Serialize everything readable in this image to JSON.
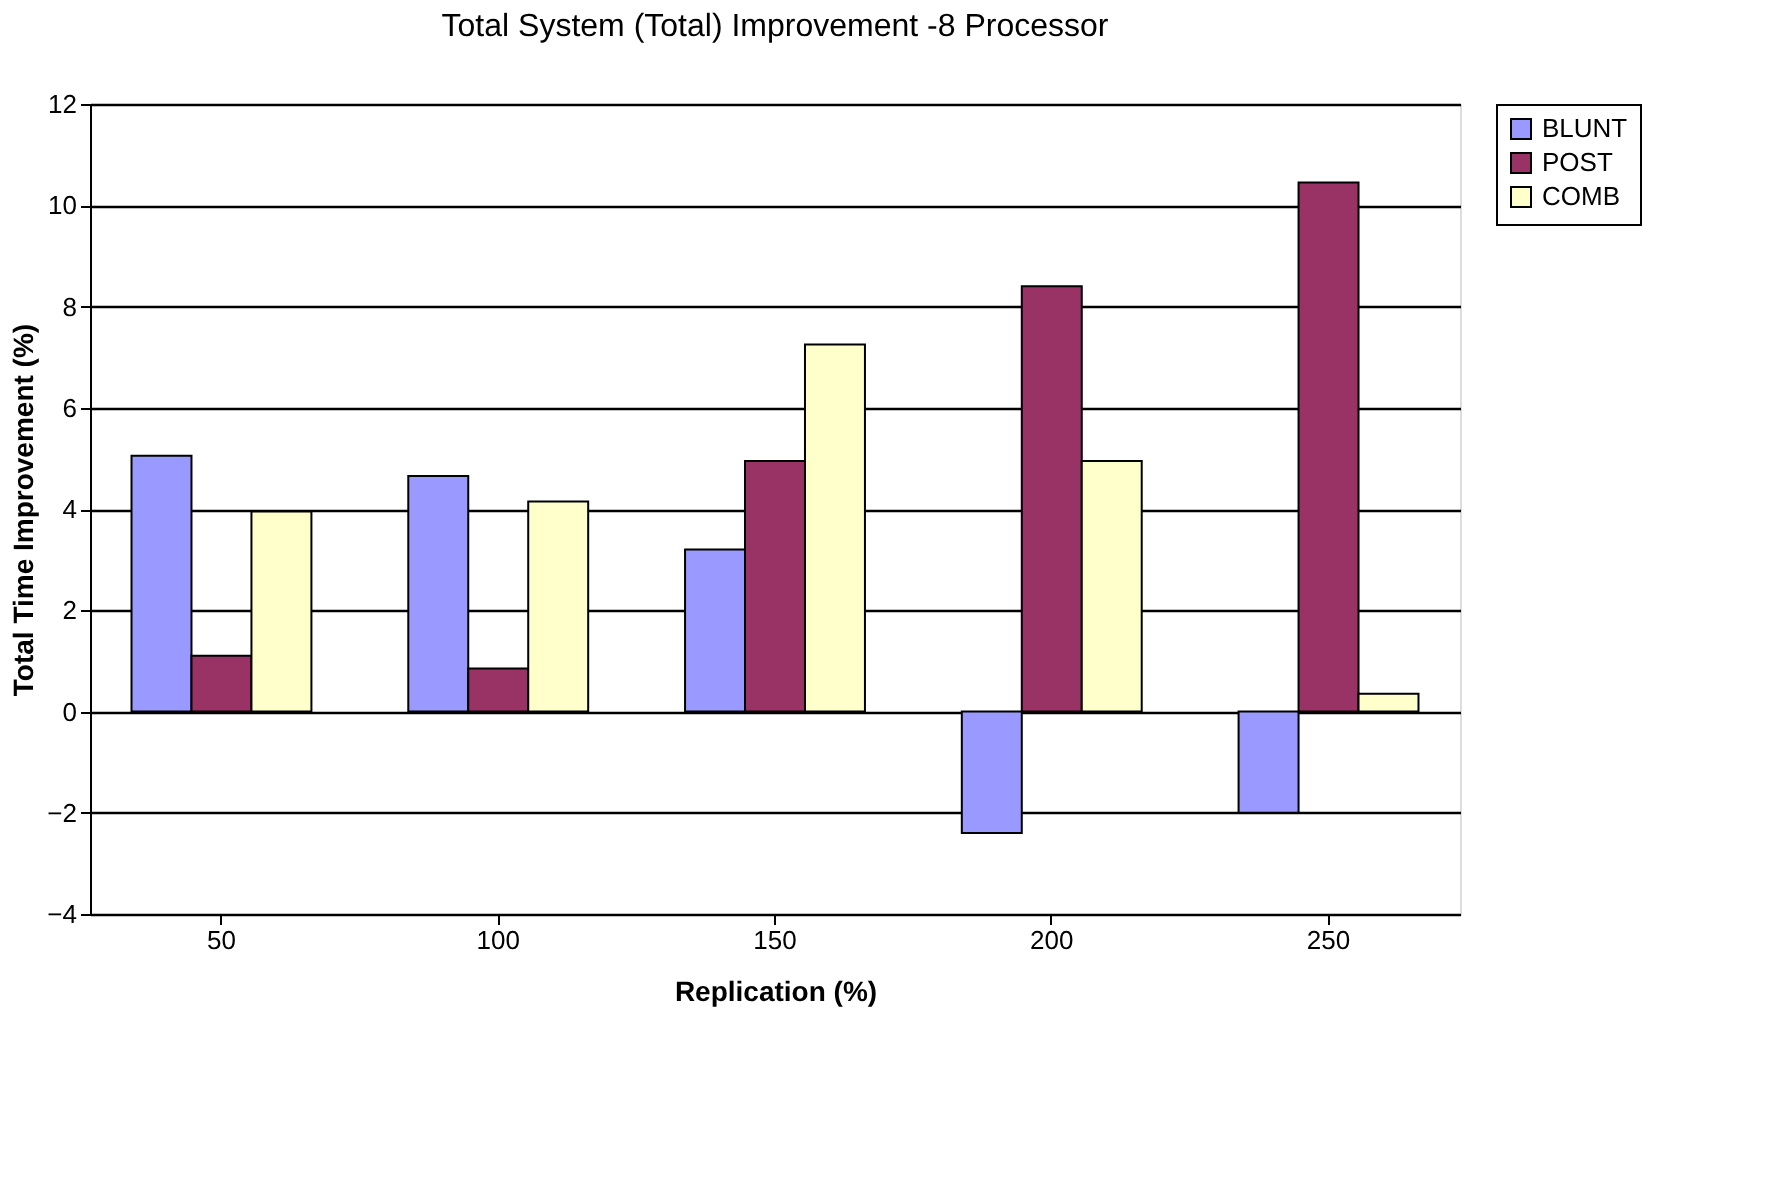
{
  "chart_data": {
    "type": "bar",
    "title": "Total System (Total) Improvement -8 Processor",
    "xlabel": "Replication (%)",
    "ylabel": "Total Time Improvement (%)",
    "categories": [
      "50",
      "100",
      "150",
      "200",
      "250"
    ],
    "series": [
      {
        "name": "BLUNT",
        "color": "#9999ff",
        "values": [
          5.05,
          4.65,
          3.2,
          -2.4,
          -2.0
        ]
      },
      {
        "name": "POST",
        "color": "#993366",
        "values": [
          1.1,
          0.85,
          4.95,
          8.4,
          10.45
        ]
      },
      {
        "name": "COMB",
        "color": "#ffffcc",
        "values": [
          3.95,
          4.15,
          7.25,
          4.95,
          0.35
        ]
      }
    ],
    "ylim": [
      -4,
      12
    ],
    "yticks": [
      -4,
      -2,
      0,
      2,
      4,
      6,
      8,
      10,
      12
    ],
    "grid": "y",
    "legend": "right"
  }
}
